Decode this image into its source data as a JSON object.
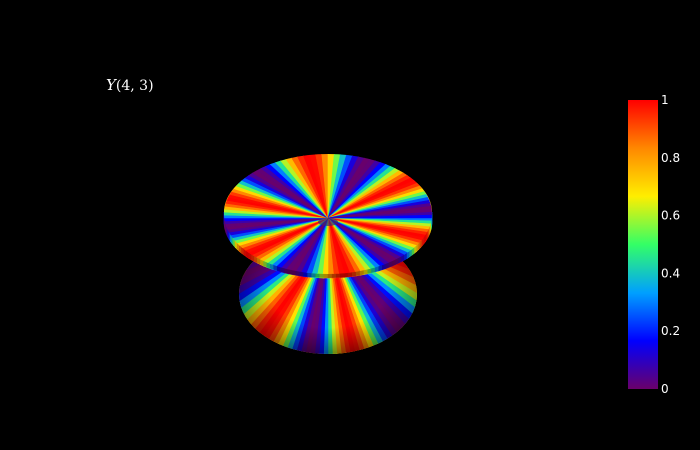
{
  "background": "#000000",
  "chart_data": {
    "type": "surface",
    "title": "Y(4, 3)",
    "title_parts": {
      "symbol": "Y",
      "args": "(4, 3)"
    },
    "function": {
      "name": "Y",
      "l": 4,
      "m": 3
    },
    "colorbar": {
      "min": 0,
      "max": 1,
      "tick_values": [
        0,
        0.2,
        0.4,
        0.6,
        0.8,
        1
      ],
      "tick_labels": [
        "0",
        "0.2",
        "0.4",
        "0.6",
        "0.8",
        "1"
      ],
      "colorscale": [
        "#6a006a",
        "#0000ff",
        "#00a0ff",
        "#33ff66",
        "#ffee00",
        "#ff8800",
        "#ff0000"
      ]
    },
    "grid": false,
    "axes_visible": false
  }
}
